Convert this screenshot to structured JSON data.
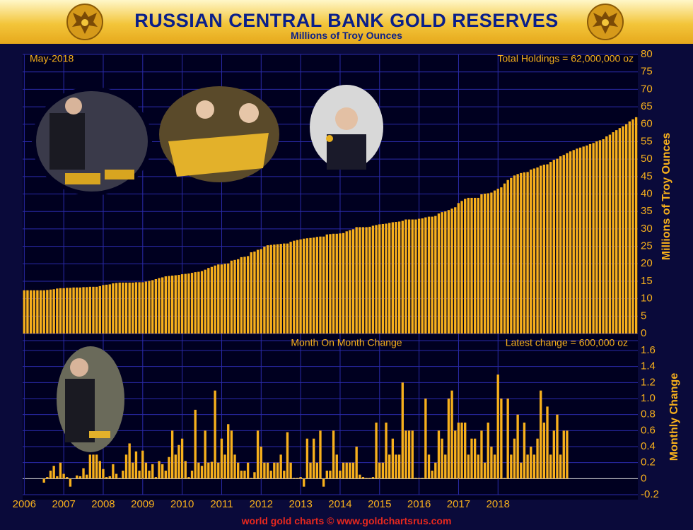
{
  "header": {
    "title": "RUSSIAN CENTRAL BANK GOLD RESERVES",
    "subtitle": "Millions of Troy Ounces"
  },
  "footer": {
    "text": "world gold charts © www.goldchartsrus.com"
  },
  "colors": {
    "bar": "#f7b01c",
    "background": "#000020",
    "grid": "#2a2aa8",
    "axis_text": "#f7b01c",
    "header": "#f3c53a",
    "title": "#0a1f8a"
  },
  "chart_data": [
    {
      "type": "bar",
      "date_label": "May-2018",
      "total_label": "Total Holdings = 62,000,000 oz",
      "ylabel": "Millions of Troy Ounces",
      "ylim": [
        0,
        80
      ],
      "yticks": [
        0,
        5,
        10,
        15,
        20,
        25,
        30,
        35,
        40,
        45,
        50,
        55,
        60,
        65,
        70,
        75,
        80
      ],
      "grid": true,
      "x_start": "2006-01",
      "x_labels": [
        "2006",
        "2007",
        "2008",
        "2009",
        "2010",
        "2011",
        "2012",
        "2013",
        "2014",
        "2015",
        "2016",
        "2017",
        "2018"
      ],
      "values": [
        12.4,
        12.4,
        12.4,
        12.4,
        12.4,
        12.4,
        12.4,
        12.5,
        12.6,
        12.7,
        12.9,
        13.0,
        13.0,
        13.1,
        13.1,
        13.2,
        13.2,
        13.2,
        13.3,
        13.3,
        13.4,
        13.4,
        13.4,
        13.6,
        13.9,
        14.0,
        14.1,
        14.4,
        14.5,
        14.6,
        14.6,
        14.6,
        14.6,
        14.6,
        14.7,
        14.7,
        14.7,
        14.9,
        15.1,
        15.3,
        15.6,
        15.9,
        16.1,
        16.4,
        16.5,
        16.6,
        16.7,
        16.8,
        17.0,
        17.1,
        17.2,
        17.4,
        17.6,
        17.7,
        17.9,
        18.3,
        18.8,
        19.1,
        19.5,
        19.8,
        19.8,
        20.0,
        20.1,
        20.9,
        21.1,
        21.3,
        21.9,
        22.0,
        22.2,
        23.3,
        23.5,
        24.0,
        24.2,
        24.9,
        25.3,
        25.4,
        25.5,
        25.6,
        25.7,
        25.8,
        25.8,
        26.3,
        26.6,
        26.8,
        27.0,
        27.2,
        27.3,
        27.4,
        27.5,
        27.7,
        27.8,
        27.8,
        28.4,
        28.5,
        28.6,
        28.6,
        28.7,
        28.8,
        29.3,
        29.6,
        29.9,
        30.5,
        30.5,
        30.5,
        30.5,
        30.6,
        30.9,
        31.1,
        31.3,
        31.4,
        31.5,
        31.7,
        31.9,
        32.0,
        32.1,
        32.3,
        32.7,
        32.7,
        32.7,
        32.7,
        32.9,
        33.0,
        33.3,
        33.5,
        33.5,
        33.7,
        34.4,
        34.8,
        35.0,
        35.4,
        35.8,
        36.2,
        37.4,
        38.0,
        38.6,
        38.9,
        38.9,
        38.9,
        38.9,
        39.9,
        40.1,
        40.2,
        40.4,
        41.0,
        41.5,
        41.9,
        43.0,
        44.0,
        44.6,
        45.3,
        45.7,
        46.0,
        46.2,
        46.3,
        47.0,
        47.3,
        47.6,
        48.1,
        48.4,
        48.5,
        49.2,
        49.8,
        50.1,
        50.8,
        51.2,
        51.7,
        52.2,
        52.6,
        53.0,
        53.3,
        53.6,
        53.9,
        54.3,
        54.6,
        55.1,
        55.4,
        55.7,
        56.5,
        57.0,
        57.7,
        58.3,
        58.9,
        59.4,
        60.0,
        60.8,
        61.4,
        62.0
      ]
    },
    {
      "type": "bar",
      "title": "Month On Month Change",
      "latest_label": "Latest change = 600,000 oz",
      "ylabel": "Monthly Change",
      "ylim": [
        -0.2,
        1.6
      ],
      "yticks": [
        -0.2,
        0,
        0.2,
        0.4,
        0.6,
        0.8,
        1.0,
        1.2,
        1.4,
        1.6
      ],
      "grid": true,
      "x_start": "2006-01",
      "values": [
        0,
        0,
        0,
        0,
        0,
        0,
        -0.05,
        0.02,
        0.1,
        0.16,
        0.03,
        0.2,
        0.06,
        0.02,
        -0.1,
        0,
        0.04,
        0.03,
        0.13,
        0.05,
        0.3,
        0.3,
        0.3,
        0.22,
        0.12,
        0.02,
        0.03,
        0.18,
        0.06,
        0.01,
        0.1,
        0.3,
        0.44,
        0.2,
        0.34,
        0.1,
        0.35,
        0.2,
        0.1,
        0.18,
        0.02,
        0.22,
        0.18,
        0.1,
        0.27,
        0.6,
        0.3,
        0.42,
        0.5,
        0.22,
        0.02,
        0.1,
        0.86,
        0.2,
        0.16,
        0.6,
        0.2,
        0.21,
        1.1,
        0.2,
        0.5,
        0.3,
        0.68,
        0.6,
        0.3,
        0.2,
        0.1,
        0.1,
        0.2,
        0.01,
        0.08,
        0.6,
        0.4,
        0.2,
        0.2,
        0.1,
        0.2,
        0.2,
        0.3,
        0.1,
        0.58,
        0.2,
        0.01,
        0.01,
        0.02,
        -0.1,
        0.5,
        0.2,
        0.5,
        0.2,
        0.6,
        -0.1,
        0.1,
        0.1,
        0.6,
        0.3,
        0.1,
        0.2,
        0.2,
        0.2,
        0.2,
        0.4,
        0.05,
        0.02,
        0.01,
        0.01,
        0.02,
        0.7,
        0.2,
        0.2,
        0.7,
        0.3,
        0.5,
        0.3,
        0.3,
        1.2,
        0.6,
        0.6,
        0.6,
        0.01,
        0.01,
        0.01,
        1.0,
        0.3,
        0.1,
        0.2,
        0.6,
        0.5,
        0.3,
        1.0,
        1.1,
        0.6,
        0.7,
        0.7,
        0.7,
        0.3,
        0.5,
        0.5,
        0.3,
        0.6,
        0.2,
        0.7,
        0.4,
        0.3,
        1.3,
        1.0,
        0.01,
        1.0,
        0.3,
        0.5,
        0.8,
        0.2,
        0.7,
        0.3,
        0.4,
        0.3,
        0.5,
        1.1,
        0.7,
        0.9,
        0.3,
        0.6,
        0.8,
        0.3,
        0.6,
        0.6
      ]
    }
  ]
}
